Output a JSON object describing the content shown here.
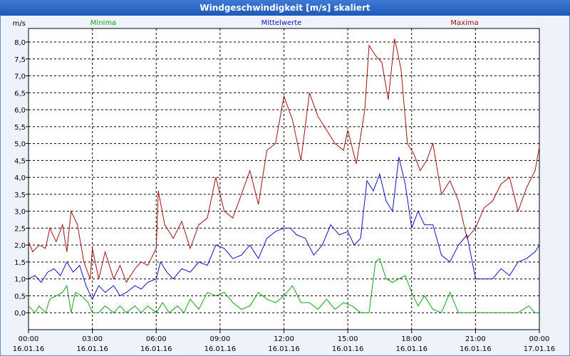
{
  "window": {
    "title": "Windgeschwindigkeit [m/s] skaliert"
  },
  "colors": {
    "minima": "#17a317",
    "mittelwerte": "#1010c0",
    "maxima": "#a01010",
    "background": "#eef3fb",
    "grid": "#000000"
  },
  "chart_data": {
    "type": "line",
    "title": "Windgeschwindigkeit [m/s] skaliert",
    "ylabel": "m/s",
    "ylim": [
      -0.5,
      8.4
    ],
    "grid": "dashed",
    "legend_placement": "top",
    "y_ticks": [
      {
        "v": 0.0,
        "label": "0,0"
      },
      {
        "v": 0.5,
        "label": "0,5"
      },
      {
        "v": 1.0,
        "label": "1,0"
      },
      {
        "v": 1.5,
        "label": "1,5"
      },
      {
        "v": 2.0,
        "label": "2,0"
      },
      {
        "v": 2.5,
        "label": "2,5"
      },
      {
        "v": 3.0,
        "label": "3,0"
      },
      {
        "v": 3.5,
        "label": "3,5"
      },
      {
        "v": 4.0,
        "label": "4,0"
      },
      {
        "v": 4.5,
        "label": "4,5"
      },
      {
        "v": 5.0,
        "label": "5,0"
      },
      {
        "v": 5.5,
        "label": "5,5"
      },
      {
        "v": 6.0,
        "label": "6,0"
      },
      {
        "v": 6.5,
        "label": "6,5"
      },
      {
        "v": 7.0,
        "label": "7,0"
      },
      {
        "v": 7.5,
        "label": "7,5"
      },
      {
        "v": 8.0,
        "label": "8,0"
      }
    ],
    "x_ticks": [
      {
        "h": 0,
        "time": "00:00",
        "date": "16.01.16"
      },
      {
        "h": 3,
        "time": "03:00",
        "date": "16.01.16"
      },
      {
        "h": 6,
        "time": "06:00",
        "date": "16.01.16"
      },
      {
        "h": 9,
        "time": "09:00",
        "date": "16.01.16"
      },
      {
        "h": 12,
        "time": "12:00",
        "date": "16.01.16"
      },
      {
        "h": 15,
        "time": "15:00",
        "date": "16.01.16"
      },
      {
        "h": 18,
        "time": "18:00",
        "date": "16.01.16"
      },
      {
        "h": 21,
        "time": "21:00",
        "date": "16.01.16"
      },
      {
        "h": 24,
        "time": "00:00",
        "date": "17.01.16"
      }
    ],
    "series": [
      {
        "name": "Minima",
        "key": "minima",
        "points": [
          [
            0,
            0.2
          ],
          [
            0.3,
            0.0
          ],
          [
            0.5,
            0.2
          ],
          [
            0.8,
            0.0
          ],
          [
            1.0,
            0.4
          ],
          [
            1.3,
            0.5
          ],
          [
            1.6,
            0.6
          ],
          [
            1.8,
            0.8
          ],
          [
            2.0,
            0.0
          ],
          [
            2.2,
            0.6
          ],
          [
            2.5,
            0.5
          ],
          [
            2.8,
            0.3
          ],
          [
            3.0,
            0.0
          ],
          [
            3.3,
            0.0
          ],
          [
            3.6,
            0.2
          ],
          [
            4.0,
            0.0
          ],
          [
            4.3,
            0.2
          ],
          [
            4.6,
            0.0
          ],
          [
            5.0,
            0.2
          ],
          [
            5.3,
            0.0
          ],
          [
            5.6,
            0.2
          ],
          [
            6.0,
            0.0
          ],
          [
            6.3,
            0.3
          ],
          [
            6.6,
            0.0
          ],
          [
            7.0,
            0.2
          ],
          [
            7.3,
            0.0
          ],
          [
            7.6,
            0.4
          ],
          [
            8.0,
            0.1
          ],
          [
            8.4,
            0.6
          ],
          [
            8.8,
            0.5
          ],
          [
            9.2,
            0.6
          ],
          [
            9.6,
            0.3
          ],
          [
            10.0,
            0.1
          ],
          [
            10.4,
            0.2
          ],
          [
            10.8,
            0.6
          ],
          [
            11.2,
            0.4
          ],
          [
            11.6,
            0.3
          ],
          [
            12.0,
            0.5
          ],
          [
            12.4,
            0.8
          ],
          [
            12.8,
            0.3
          ],
          [
            13.2,
            0.3
          ],
          [
            13.6,
            0.1
          ],
          [
            14.0,
            0.4
          ],
          [
            14.4,
            0.1
          ],
          [
            14.8,
            0.3
          ],
          [
            15.2,
            0.2
          ],
          [
            15.6,
            0.0
          ],
          [
            16.0,
            0.0
          ],
          [
            16.3,
            1.5
          ],
          [
            16.5,
            1.6
          ],
          [
            16.8,
            1.0
          ],
          [
            17.1,
            0.9
          ],
          [
            17.4,
            1.0
          ],
          [
            17.7,
            1.1
          ],
          [
            18.0,
            0.6
          ],
          [
            18.3,
            0.2
          ],
          [
            18.6,
            0.5
          ],
          [
            19.0,
            0.1
          ],
          [
            19.4,
            0.0
          ],
          [
            19.8,
            0.6
          ],
          [
            20.2,
            0.0
          ],
          [
            20.6,
            0.0
          ],
          [
            21.0,
            0.0
          ],
          [
            22.0,
            0.0
          ],
          [
            23.0,
            0.0
          ],
          [
            23.5,
            0.2
          ],
          [
            23.8,
            0.0
          ],
          [
            24.0,
            0.0
          ]
        ]
      },
      {
        "name": "Mittelwerte",
        "key": "mittelwerte",
        "points": [
          [
            0,
            1.0
          ],
          [
            0.3,
            1.1
          ],
          [
            0.6,
            0.9
          ],
          [
            0.9,
            1.2
          ],
          [
            1.2,
            1.3
          ],
          [
            1.5,
            1.1
          ],
          [
            1.8,
            1.5
          ],
          [
            2.1,
            1.2
          ],
          [
            2.4,
            1.4
          ],
          [
            2.7,
            0.8
          ],
          [
            3.0,
            0.4
          ],
          [
            3.3,
            0.8
          ],
          [
            3.6,
            0.6
          ],
          [
            4.0,
            0.8
          ],
          [
            4.3,
            0.5
          ],
          [
            4.6,
            0.6
          ],
          [
            5.0,
            0.8
          ],
          [
            5.3,
            0.7
          ],
          [
            5.6,
            0.9
          ],
          [
            6.0,
            1.0
          ],
          [
            6.2,
            1.5
          ],
          [
            6.5,
            1.2
          ],
          [
            6.8,
            1.0
          ],
          [
            7.2,
            1.3
          ],
          [
            7.6,
            1.2
          ],
          [
            8.0,
            1.5
          ],
          [
            8.4,
            1.4
          ],
          [
            8.8,
            2.0
          ],
          [
            9.2,
            1.9
          ],
          [
            9.6,
            1.6
          ],
          [
            10.0,
            1.7
          ],
          [
            10.4,
            2.0
          ],
          [
            10.8,
            1.6
          ],
          [
            11.2,
            2.2
          ],
          [
            11.6,
            2.4
          ],
          [
            12.0,
            2.5
          ],
          [
            12.3,
            2.5
          ],
          [
            12.6,
            2.3
          ],
          [
            13.0,
            2.2
          ],
          [
            13.4,
            1.7
          ],
          [
            13.8,
            2.0
          ],
          [
            14.2,
            2.6
          ],
          [
            14.6,
            2.3
          ],
          [
            15.0,
            2.4
          ],
          [
            15.3,
            2.0
          ],
          [
            15.6,
            2.2
          ],
          [
            15.9,
            3.9
          ],
          [
            16.2,
            3.6
          ],
          [
            16.5,
            4.1
          ],
          [
            16.8,
            3.3
          ],
          [
            17.1,
            3.0
          ],
          [
            17.4,
            4.6
          ],
          [
            17.7,
            3.8
          ],
          [
            18.0,
            2.5
          ],
          [
            18.3,
            3.0
          ],
          [
            18.6,
            2.6
          ],
          [
            19.0,
            2.6
          ],
          [
            19.4,
            1.7
          ],
          [
            19.8,
            1.5
          ],
          [
            20.2,
            2.0
          ],
          [
            20.6,
            2.3
          ],
          [
            21.0,
            1.0
          ],
          [
            21.4,
            1.0
          ],
          [
            21.8,
            1.0
          ],
          [
            22.2,
            1.3
          ],
          [
            22.6,
            1.1
          ],
          [
            23.0,
            1.5
          ],
          [
            23.4,
            1.6
          ],
          [
            23.8,
            1.8
          ],
          [
            24.0,
            2.0
          ]
        ]
      },
      {
        "name": "Maxima",
        "key": "maxima",
        "points": [
          [
            0,
            2.1
          ],
          [
            0.2,
            1.8
          ],
          [
            0.5,
            2.0
          ],
          [
            0.8,
            1.9
          ],
          [
            1.0,
            2.5
          ],
          [
            1.3,
            2.1
          ],
          [
            1.6,
            2.6
          ],
          [
            1.8,
            1.8
          ],
          [
            2.0,
            3.0
          ],
          [
            2.3,
            2.6
          ],
          [
            2.6,
            1.5
          ],
          [
            2.9,
            1.0
          ],
          [
            3.0,
            1.9
          ],
          [
            3.3,
            1.0
          ],
          [
            3.6,
            1.8
          ],
          [
            4.0,
            1.0
          ],
          [
            4.3,
            1.4
          ],
          [
            4.6,
            0.9
          ],
          [
            5.0,
            1.3
          ],
          [
            5.3,
            1.5
          ],
          [
            5.6,
            1.4
          ],
          [
            6.0,
            1.9
          ],
          [
            6.1,
            3.6
          ],
          [
            6.4,
            2.6
          ],
          [
            6.8,
            2.2
          ],
          [
            7.2,
            2.7
          ],
          [
            7.6,
            1.9
          ],
          [
            8.0,
            2.6
          ],
          [
            8.4,
            2.8
          ],
          [
            8.8,
            4.0
          ],
          [
            9.2,
            3.0
          ],
          [
            9.6,
            2.8
          ],
          [
            10.0,
            3.5
          ],
          [
            10.4,
            4.2
          ],
          [
            10.8,
            3.2
          ],
          [
            11.2,
            4.8
          ],
          [
            11.6,
            5.0
          ],
          [
            12.0,
            6.4
          ],
          [
            12.4,
            5.7
          ],
          [
            12.8,
            4.5
          ],
          [
            13.2,
            6.5
          ],
          [
            13.6,
            5.8
          ],
          [
            14.0,
            5.4
          ],
          [
            14.4,
            5.0
          ],
          [
            14.8,
            4.8
          ],
          [
            15.0,
            5.4
          ],
          [
            15.4,
            4.4
          ],
          [
            15.8,
            6.0
          ],
          [
            16.0,
            7.9
          ],
          [
            16.3,
            7.6
          ],
          [
            16.6,
            7.4
          ],
          [
            16.9,
            6.3
          ],
          [
            17.2,
            8.1
          ],
          [
            17.5,
            7.2
          ],
          [
            17.8,
            5.0
          ],
          [
            18.1,
            4.7
          ],
          [
            18.4,
            4.2
          ],
          [
            18.7,
            4.5
          ],
          [
            19.0,
            5.0
          ],
          [
            19.4,
            3.5
          ],
          [
            19.8,
            3.9
          ],
          [
            20.2,
            3.3
          ],
          [
            20.6,
            2.2
          ],
          [
            21.0,
            2.5
          ],
          [
            21.4,
            3.1
          ],
          [
            21.8,
            3.3
          ],
          [
            22.2,
            3.8
          ],
          [
            22.6,
            4.0
          ],
          [
            23.0,
            3.0
          ],
          [
            23.4,
            3.7
          ],
          [
            23.8,
            4.2
          ],
          [
            24.0,
            4.9
          ]
        ]
      }
    ]
  }
}
